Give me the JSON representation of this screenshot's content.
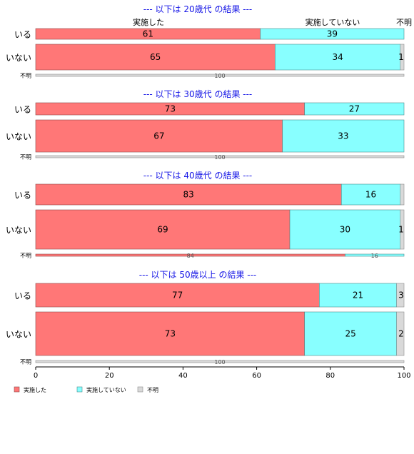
{
  "chart_data": {
    "type": "bar",
    "orientation": "horizontal",
    "stacked": "percent",
    "legend_position": "bottom-left",
    "xlim": [
      0,
      100
    ],
    "x_ticks": [
      0,
      20,
      40,
      60,
      80,
      100
    ],
    "legend": [
      {
        "name": "実施した",
        "color": "#ff7777"
      },
      {
        "name": "実施していない",
        "color": "#88ffff"
      },
      {
        "name": "不明",
        "color": "#d9d9d9"
      }
    ],
    "top_column_labels": [
      "実施した",
      "実施していない",
      "不明"
    ],
    "panels": [
      {
        "title": "--- 以下は 20歳代 の結果 ---",
        "rows": [
          {
            "label": "いる",
            "values": [
              61,
              39,
              0
            ],
            "labels": [
              "61",
              "39",
              ""
            ]
          },
          {
            "label": "いない",
            "values": [
              65,
              34,
              1
            ],
            "labels": [
              "65",
              "34",
              "1"
            ]
          },
          {
            "label": "不明",
            "values": [
              0,
              0,
              100
            ],
            "labels": [
              "",
              "",
              "100"
            ]
          }
        ]
      },
      {
        "title": "--- 以下は 30歳代 の結果 ---",
        "rows": [
          {
            "label": "いる",
            "values": [
              73,
              27,
              0
            ],
            "labels": [
              "73",
              "27",
              ""
            ]
          },
          {
            "label": "いない",
            "values": [
              67,
              33,
              0
            ],
            "labels": [
              "67",
              "33",
              ""
            ]
          },
          {
            "label": "不明",
            "values": [
              0,
              0,
              100
            ],
            "labels": [
              "",
              "",
              "100"
            ]
          }
        ]
      },
      {
        "title": "--- 以下は 40歳代 の結果 ---",
        "rows": [
          {
            "label": "いる",
            "values": [
              83,
              16,
              1
            ],
            "labels": [
              "83",
              "16",
              ""
            ]
          },
          {
            "label": "いない",
            "values": [
              69,
              30,
              1
            ],
            "labels": [
              "69",
              "30",
              "1"
            ]
          },
          {
            "label": "不明",
            "values": [
              84,
              16,
              0
            ],
            "labels": [
              "84",
              "16",
              ""
            ]
          }
        ]
      },
      {
        "title": "--- 以下は 50歳以上 の結果 ---",
        "rows": [
          {
            "label": "いる",
            "values": [
              77,
              21,
              3
            ],
            "labels": [
              "77",
              "21",
              "3"
            ]
          },
          {
            "label": "いない",
            "values": [
              73,
              25,
              2
            ],
            "labels": [
              "73",
              "25",
              "2"
            ]
          },
          {
            "label": "不明",
            "values": [
              0,
              0,
              100
            ],
            "labels": [
              "",
              "",
              "100"
            ]
          }
        ]
      }
    ]
  }
}
